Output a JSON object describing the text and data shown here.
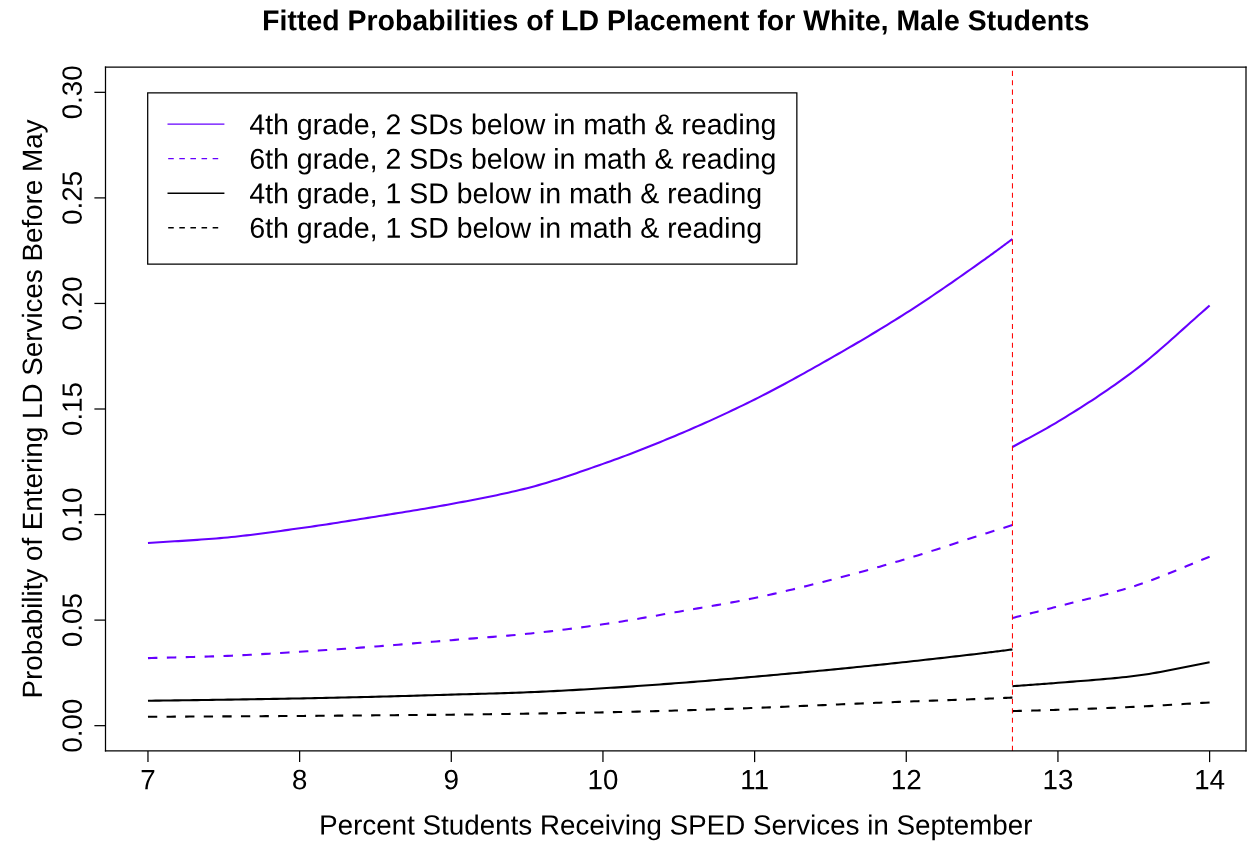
{
  "chart_data": {
    "type": "line",
    "title": "Fitted Probabilities of LD Placement for White, Male Students",
    "xlabel": "Percent Students Receiving SPED Services in September",
    "ylabel": "Probability of Entering LD Services Before May",
    "series": [
      {
        "name": "4th grade, 2 SDs below in math & reading",
        "color": "#6600ff",
        "line_style": "solid",
        "x": [
          7,
          7.5,
          8,
          8.5,
          9,
          9.5,
          10,
          10.5,
          11,
          11.5,
          12,
          12.5,
          12.7
        ],
        "values": [
          0.0865,
          0.089,
          0.0935,
          0.099,
          0.105,
          0.1125,
          0.124,
          0.138,
          0.1545,
          0.174,
          0.1955,
          0.22,
          0.2305
        ]
      },
      {
        "color": "#6600ff",
        "line_style": "solid",
        "x": [
          12.7,
          13,
          13.5,
          14
        ],
        "values": [
          0.132,
          0.144,
          0.168,
          0.199
        ]
      },
      {
        "name": "6th grade, 2 SDs below in math & reading",
        "color": "#6600ff",
        "line_style": "dashed",
        "x": [
          7,
          7.5,
          8,
          8.5,
          9,
          9.5,
          10,
          10.5,
          11,
          11.5,
          12,
          12.5,
          12.7
        ],
        "values": [
          0.032,
          0.033,
          0.035,
          0.0375,
          0.0405,
          0.0435,
          0.048,
          0.054,
          0.0605,
          0.069,
          0.079,
          0.0905,
          0.095
        ]
      },
      {
        "color": "#6600ff",
        "line_style": "dashed",
        "x": [
          12.7,
          13,
          13.5,
          14
        ],
        "values": [
          0.051,
          0.0565,
          0.066,
          0.08
        ]
      },
      {
        "name": "4th grade, 1 SD below in math & reading",
        "color": "#000000",
        "line_style": "solid",
        "x": [
          7,
          7.5,
          8,
          8.5,
          9,
          9.5,
          10,
          10.5,
          11,
          11.5,
          12,
          12.5,
          12.7
        ],
        "values": [
          0.0118,
          0.0123,
          0.0129,
          0.0137,
          0.0147,
          0.0158,
          0.0177,
          0.0202,
          0.0232,
          0.0265,
          0.0302,
          0.0343,
          0.0361
        ]
      },
      {
        "color": "#000000",
        "line_style": "solid",
        "x": [
          12.7,
          13,
          13.5,
          14
        ],
        "values": [
          0.0187,
          0.0203,
          0.0235,
          0.03
        ]
      },
      {
        "name": "6th grade, 1 SD below in math & reading",
        "color": "#000000",
        "line_style": "dashed",
        "x": [
          7,
          7.5,
          8,
          8.5,
          9,
          9.5,
          10,
          10.5,
          11,
          11.5,
          12,
          12.5,
          12.7
        ],
        "values": [
          0.0042,
          0.0044,
          0.0046,
          0.0049,
          0.0052,
          0.0057,
          0.0063,
          0.0072,
          0.0084,
          0.0099,
          0.0114,
          0.0127,
          0.0133
        ]
      },
      {
        "color": "#000000",
        "line_style": "dashed",
        "x": [
          12.7,
          13,
          13.5,
          14
        ],
        "values": [
          0.0069,
          0.0075,
          0.0089,
          0.011
        ]
      }
    ],
    "xlim": [
      6.72,
      14.24
    ],
    "xticks": [
      7,
      8,
      9,
      10,
      11,
      12,
      13,
      14
    ],
    "ylim": [
      -0.012,
      0.312
    ],
    "yticks": [
      {
        "value": 0,
        "label": "0.00"
      },
      0.05,
      {
        "value": 0.1,
        "label": "0.10"
      },
      0.15,
      {
        "value": 0.2,
        "label": "0.20"
      },
      0.25,
      {
        "value": 0.3,
        "label": "0.30"
      }
    ],
    "ref_lines": [
      {
        "axis": "x",
        "value": 12.7,
        "color": "#ff0000",
        "line_style": "dashed"
      }
    ],
    "legend": "top left",
    "grid": false,
    "marker": "none"
  }
}
